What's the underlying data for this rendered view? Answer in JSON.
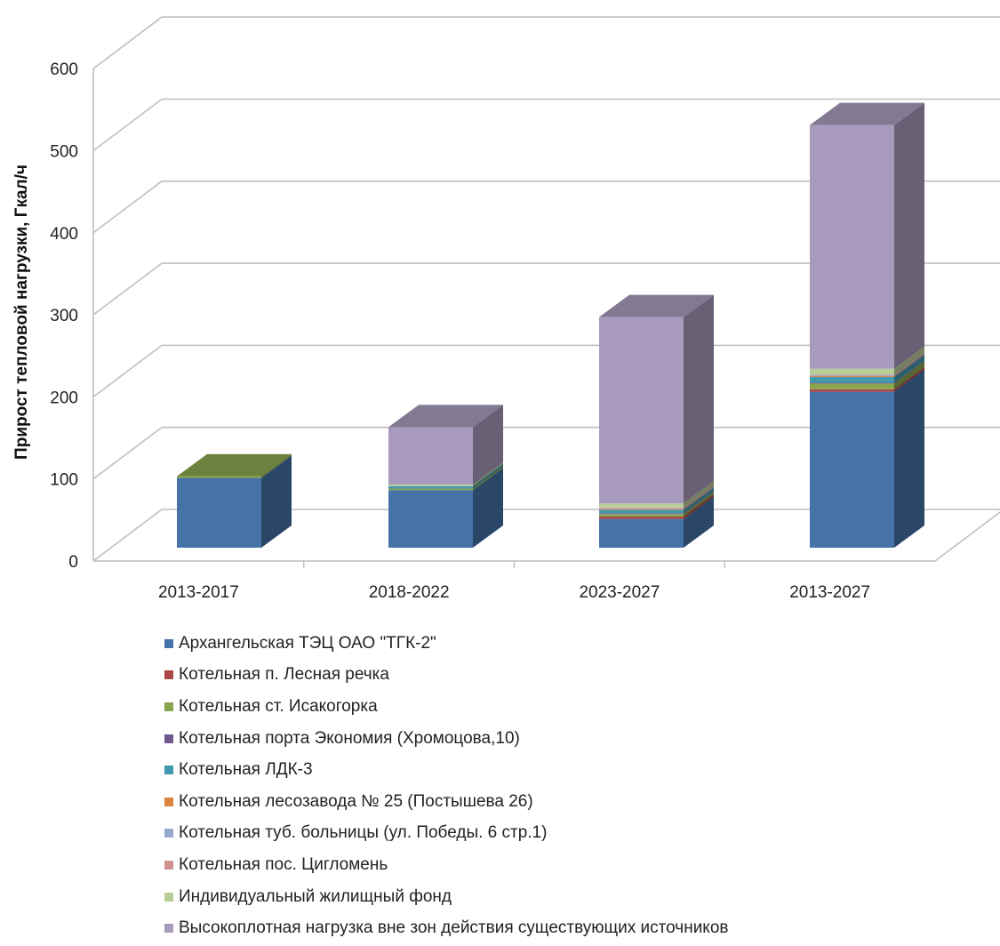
{
  "chart_data": {
    "type": "bar",
    "stacked": true,
    "three_d": true,
    "title": "",
    "xlabel": "",
    "ylabel": "Прирост тепловой нагрузки, Гкал/ч",
    "ylim": [
      0,
      600
    ],
    "yticks": [
      0,
      100,
      200,
      300,
      400,
      500,
      600
    ],
    "grid": true,
    "legend_position": "bottom",
    "categories": [
      "2013-2017",
      "2018-2022",
      "2023-2027",
      "2013-2027"
    ],
    "series": [
      {
        "name": "Архангельская ТЭЦ ОАО \"ТГК-2\"",
        "color": "#4572a7",
        "values": [
          85,
          70,
          35,
          190
        ]
      },
      {
        "name": "Котельная п. Лесная речка",
        "color": "#aa4643",
        "values": [
          0,
          0,
          3,
          3
        ]
      },
      {
        "name": "Котельная  ст. Исакогорка",
        "color": "#89a54e",
        "values": [
          2,
          2,
          3,
          7
        ]
      },
      {
        "name": "Котельная порта Экономия (Хромоцова,10)",
        "color": "#71588f",
        "values": [
          0,
          0,
          1,
          1
        ]
      },
      {
        "name": "Котельная ЛДК-3",
        "color": "#4198af",
        "values": [
          0,
          3,
          4,
          7
        ]
      },
      {
        "name": "Котельная лесозавода № 25 (Постышева 26)",
        "color": "#db843d",
        "values": [
          0,
          0,
          1,
          1
        ]
      },
      {
        "name": "Котельная  туб. больницы  (ул. Победы. 6 стр.1)",
        "color": "#93a9cf",
        "values": [
          0,
          0,
          1,
          1
        ]
      },
      {
        "name": "Котельная пос. Цигломень",
        "color": "#d19392",
        "values": [
          0,
          0,
          1,
          1
        ]
      },
      {
        "name": "Индивидуальный жилищный фонд",
        "color": "#b9cd96",
        "values": [
          0,
          2,
          5,
          7
        ]
      },
      {
        "name": "Высокоплотная нагрузка вне зон действия существующих источников",
        "color": "#a99bbd",
        "values": [
          0,
          70,
          227,
          297
        ]
      }
    ]
  }
}
